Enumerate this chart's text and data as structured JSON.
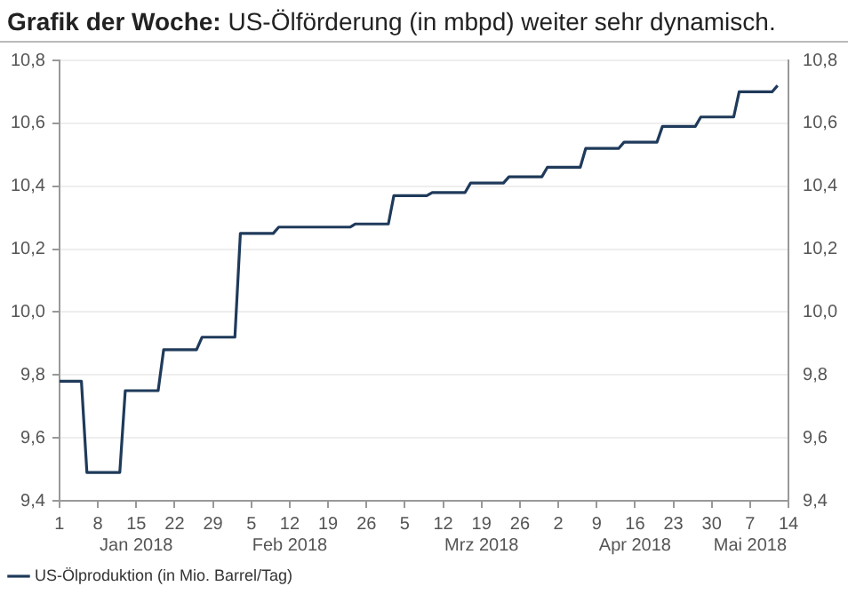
{
  "chart_data": {
    "type": "line",
    "title": "Grafik der Woche: US-Ölförderung (in mbpd) weiter sehr dynamisch.",
    "x": [
      "2018-01-01",
      "2018-01-05",
      "2018-01-06",
      "2018-01-12",
      "2018-01-13",
      "2018-01-19",
      "2018-01-20",
      "2018-01-26",
      "2018-01-27",
      "2018-02-02",
      "2018-02-03",
      "2018-02-09",
      "2018-02-10",
      "2018-02-23",
      "2018-02-24",
      "2018-03-02",
      "2018-03-03",
      "2018-03-09",
      "2018-03-10",
      "2018-03-16",
      "2018-03-17",
      "2018-03-23",
      "2018-03-24",
      "2018-03-30",
      "2018-03-31",
      "2018-04-06",
      "2018-04-07",
      "2018-04-13",
      "2018-04-14",
      "2018-04-20",
      "2018-04-21",
      "2018-04-27",
      "2018-04-28",
      "2018-05-04",
      "2018-05-05",
      "2018-05-11",
      "2018-05-12"
    ],
    "series": [
      {
        "name": "US-Ölproduktion (in Mio. Barrel/Tag)",
        "color": "#1f3a5a",
        "values": [
          9.78,
          9.78,
          9.49,
          9.49,
          9.75,
          9.75,
          9.88,
          9.88,
          9.92,
          9.92,
          10.25,
          10.25,
          10.27,
          10.27,
          10.28,
          10.28,
          10.37,
          10.37,
          10.38,
          10.38,
          10.41,
          10.41,
          10.43,
          10.43,
          10.46,
          10.46,
          10.52,
          10.52,
          10.54,
          10.54,
          10.59,
          10.59,
          10.62,
          10.62,
          10.7,
          10.7,
          10.72
        ]
      }
    ],
    "xlim": [
      "2018-01-01",
      "2018-05-14"
    ],
    "xticks": [
      {
        "value": "2018-01-01",
        "label": "1"
      },
      {
        "value": "2018-01-08",
        "label": "8"
      },
      {
        "value": "2018-01-15",
        "label": "15\nJan 2018"
      },
      {
        "value": "2018-01-22",
        "label": "22"
      },
      {
        "value": "2018-01-29",
        "label": "29"
      },
      {
        "value": "2018-02-05",
        "label": "5"
      },
      {
        "value": "2018-02-12",
        "label": "12\nFeb 2018"
      },
      {
        "value": "2018-02-19",
        "label": "19"
      },
      {
        "value": "2018-02-26",
        "label": "26"
      },
      {
        "value": "2018-03-05",
        "label": "5"
      },
      {
        "value": "2018-03-12",
        "label": "12"
      },
      {
        "value": "2018-03-19",
        "label": "19\nMrz 2018"
      },
      {
        "value": "2018-03-26",
        "label": "26"
      },
      {
        "value": "2018-04-02",
        "label": "2"
      },
      {
        "value": "2018-04-09",
        "label": "9"
      },
      {
        "value": "2018-04-16",
        "label": "16\nApr 2018"
      },
      {
        "value": "2018-04-23",
        "label": "23"
      },
      {
        "value": "2018-04-30",
        "label": "30"
      },
      {
        "value": "2018-05-07",
        "label": "7\nMai 2018"
      },
      {
        "value": "2018-05-14",
        "label": "14"
      }
    ],
    "ylim": [
      9.4,
      10.8
    ],
    "yticks": [
      {
        "value": 9.4,
        "label": "9,4"
      },
      {
        "value": 9.6,
        "label": "9,6"
      },
      {
        "value": 9.8,
        "label": "9,8"
      },
      {
        "value": 10.0,
        "label": "10,0"
      },
      {
        "value": 10.2,
        "label": "10,2"
      },
      {
        "value": 10.4,
        "label": "10,4"
      },
      {
        "value": 10.6,
        "label": "10,6"
      },
      {
        "value": 10.8,
        "label": "10,8"
      }
    ],
    "y2lim": [
      9.4,
      10.8
    ],
    "y2ticks": [
      {
        "value": 9.4,
        "label": "9,4"
      },
      {
        "value": 9.6,
        "label": "9,6"
      },
      {
        "value": 9.8,
        "label": "9,8"
      },
      {
        "value": 10.0,
        "label": "10,0"
      },
      {
        "value": 10.2,
        "label": "10,2"
      },
      {
        "value": 10.4,
        "label": "10,4"
      },
      {
        "value": 10.6,
        "label": "10,6"
      },
      {
        "value": 10.8,
        "label": "10,8"
      }
    ],
    "grid": "y",
    "legend": "bottom left",
    "marker": "none",
    "line_style": "solid"
  }
}
